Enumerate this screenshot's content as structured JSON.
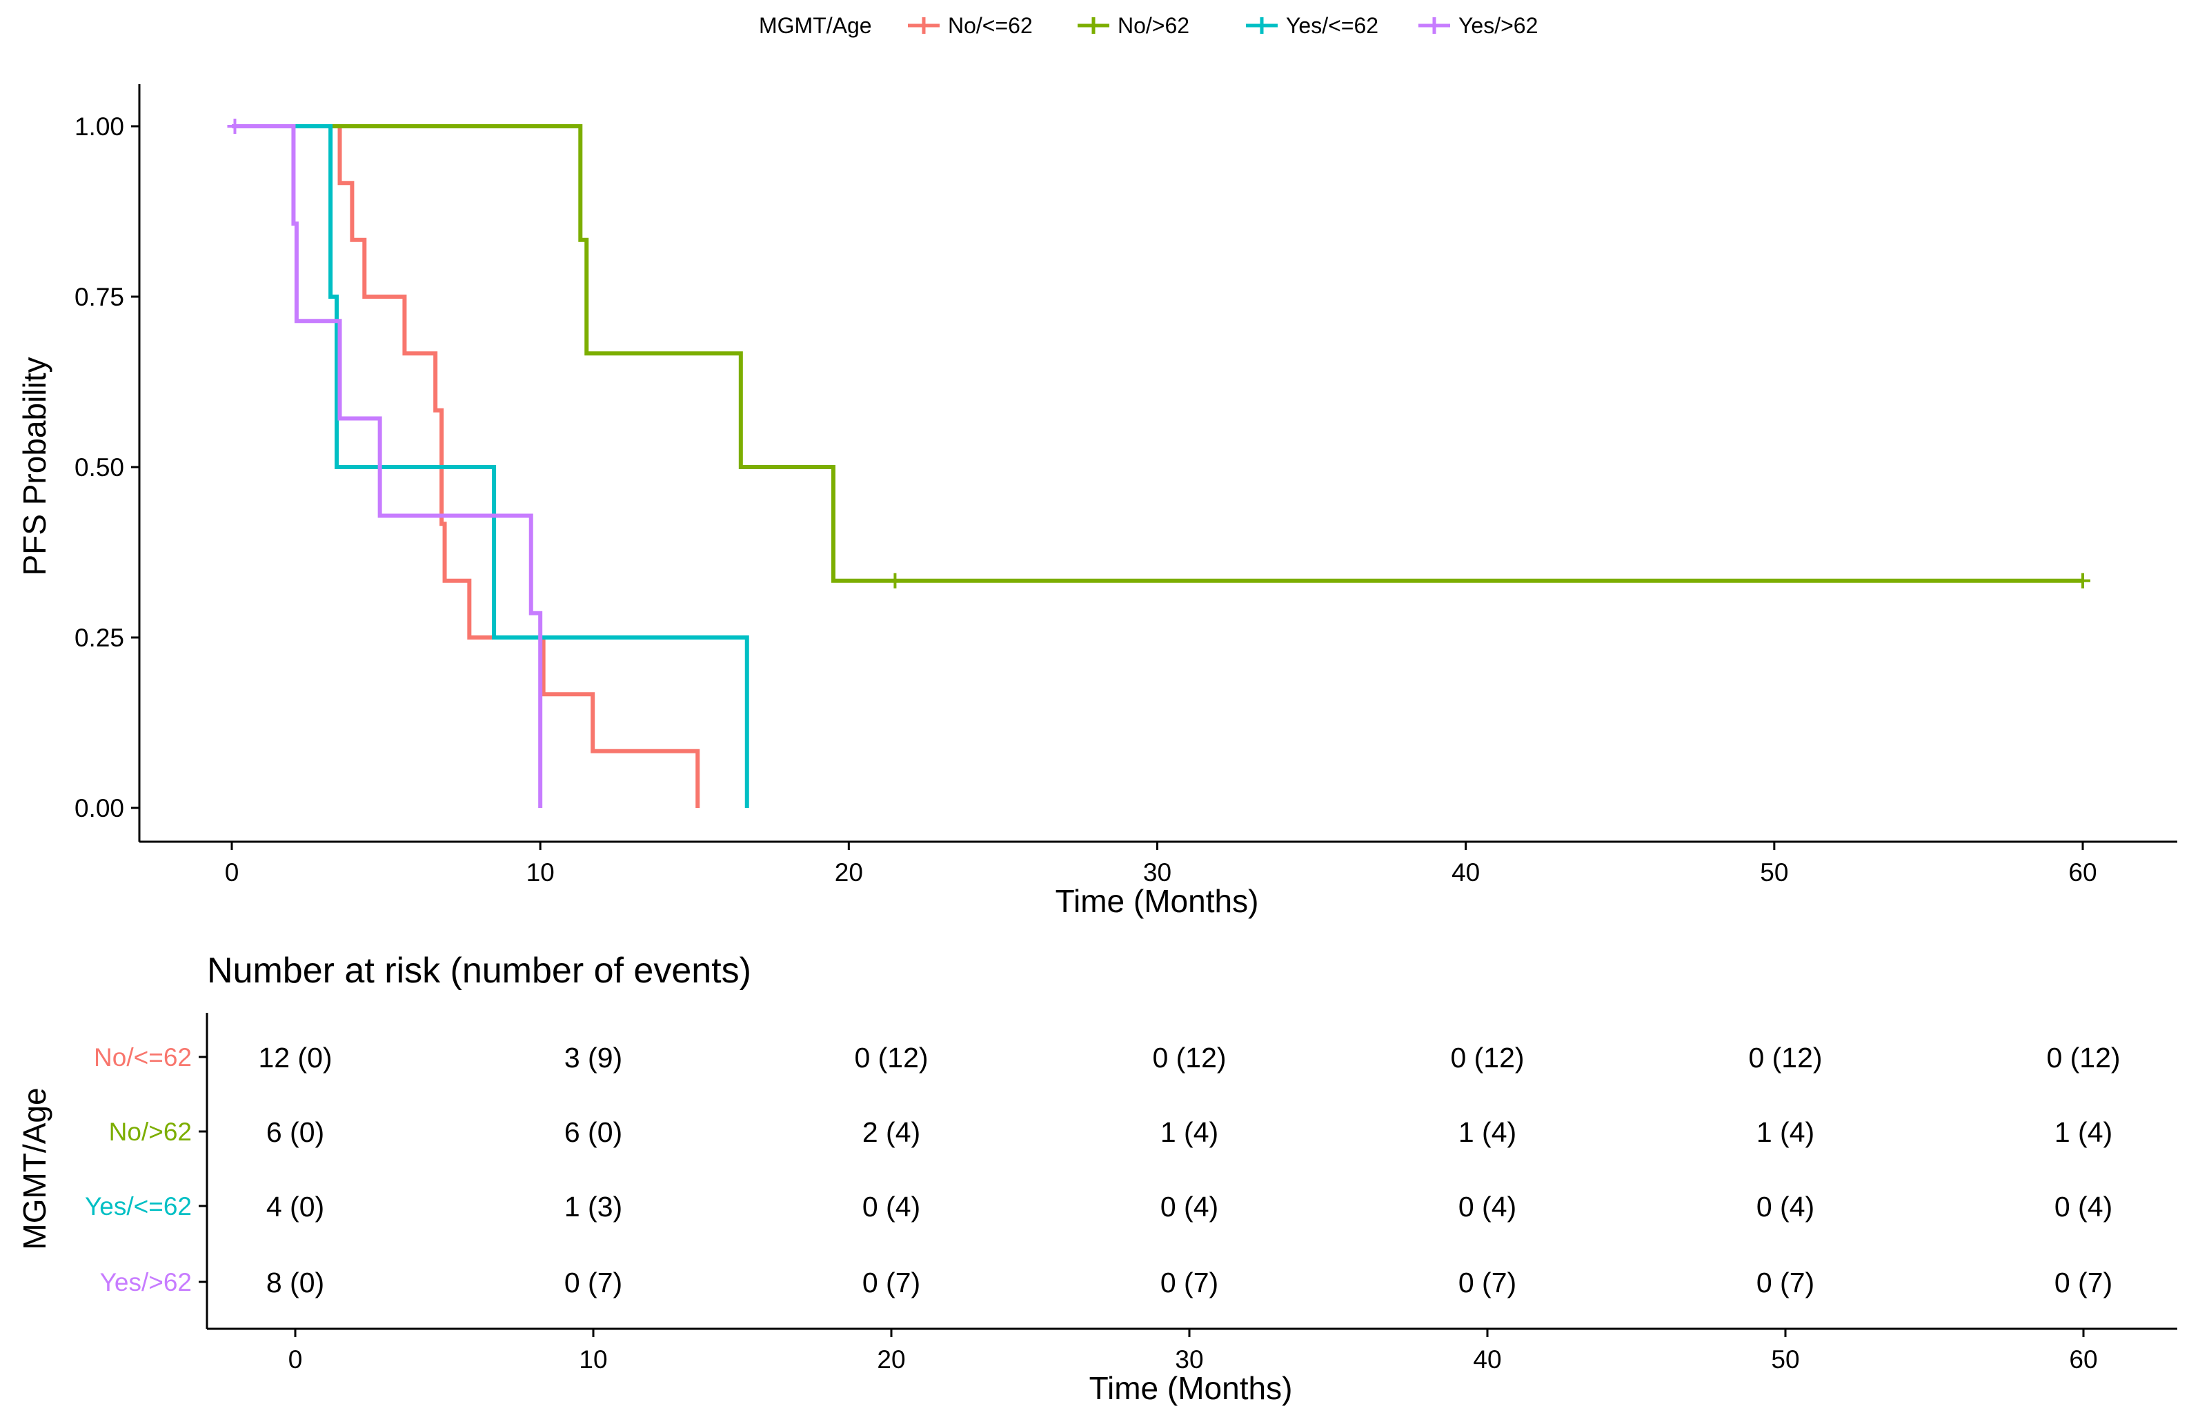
{
  "chart_data": {
    "type": "line",
    "subtype": "kaplan-meier",
    "title": "",
    "xlabel": "Time (Months)",
    "ylabel": "PFS Probability",
    "xlim": [
      0,
      60
    ],
    "ylim": [
      0,
      1
    ],
    "x_ticks": [
      "0",
      "10",
      "20",
      "30",
      "40",
      "50",
      "60"
    ],
    "y_ticks": [
      "0.00",
      "0.25",
      "0.50",
      "0.75",
      "1.00"
    ],
    "legend": {
      "title": "MGMT/Age",
      "position": "top"
    },
    "series": [
      {
        "name": "No/<=62",
        "color": "#F8766D",
        "steps": [
          [
            0,
            1.0
          ],
          [
            3.5,
            0.9167
          ],
          [
            3.9,
            0.8333
          ],
          [
            4.3,
            0.75
          ],
          [
            5.6,
            0.6667
          ],
          [
            6.6,
            0.5833
          ],
          [
            6.8,
            0.4167
          ],
          [
            6.9,
            0.3333
          ],
          [
            7.7,
            0.25
          ],
          [
            10.1,
            0.1667
          ],
          [
            11.7,
            0.0833
          ],
          [
            15.1,
            0.0
          ]
        ],
        "end": 15.1,
        "censors": []
      },
      {
        "name": "No/>62",
        "color": "#7CAE00",
        "steps": [
          [
            0,
            1.0
          ],
          [
            11.3,
            0.8333
          ],
          [
            11.5,
            0.6667
          ],
          [
            16.5,
            0.5
          ],
          [
            19.5,
            0.3333
          ]
        ],
        "end": 60,
        "censors": [
          [
            21.5,
            0.3333
          ],
          [
            60,
            0.3333
          ]
        ]
      },
      {
        "name": "Yes/<=62",
        "color": "#00BFC4",
        "steps": [
          [
            0,
            1.0
          ],
          [
            3.2,
            0.75
          ],
          [
            3.4,
            0.5
          ],
          [
            8.5,
            0.25
          ],
          [
            16.7,
            0.0
          ]
        ],
        "end": 16.7,
        "censors": []
      },
      {
        "name": "Yes/>62",
        "color": "#C77CFF",
        "steps": [
          [
            0,
            1.0
          ],
          [
            2.0,
            0.8571
          ],
          [
            2.1,
            0.7143
          ],
          [
            3.5,
            0.5714
          ],
          [
            4.8,
            0.4286
          ],
          [
            9.7,
            0.2857
          ],
          [
            10.0,
            0.0
          ]
        ],
        "end": 10.0,
        "censors": [
          [
            0.1,
            1.0
          ]
        ]
      }
    ],
    "risk_table": {
      "title": "Number at risk (number of events)",
      "ylabel": "MGMT/Age",
      "xlabel": "Time (Months)",
      "times": [
        0,
        10,
        20,
        30,
        40,
        50,
        60
      ],
      "x_ticks": [
        "0",
        "10",
        "20",
        "30",
        "40",
        "50",
        "60"
      ],
      "rows": [
        {
          "label": "No/<=62",
          "color": "#F8766D",
          "cells": [
            "12 (0)",
            "3 (9)",
            "0 (12)",
            "0 (12)",
            "0 (12)",
            "0 (12)",
            "0 (12)"
          ]
        },
        {
          "label": "No/>62",
          "color": "#7CAE00",
          "cells": [
            "6 (0)",
            "6 (0)",
            "2 (4)",
            "1 (4)",
            "1 (4)",
            "1 (4)",
            "1 (4)"
          ]
        },
        {
          "label": "Yes/<=62",
          "color": "#00BFC4",
          "cells": [
            "4 (0)",
            "1 (3)",
            "0 (4)",
            "0 (4)",
            "0 (4)",
            "0 (4)",
            "0 (4)"
          ]
        },
        {
          "label": "Yes/>62",
          "color": "#C77CFF",
          "cells": [
            "8 (0)",
            "0 (7)",
            "0 (7)",
            "0 (7)",
            "0 (7)",
            "0 (7)",
            "0 (7)"
          ]
        }
      ]
    }
  }
}
